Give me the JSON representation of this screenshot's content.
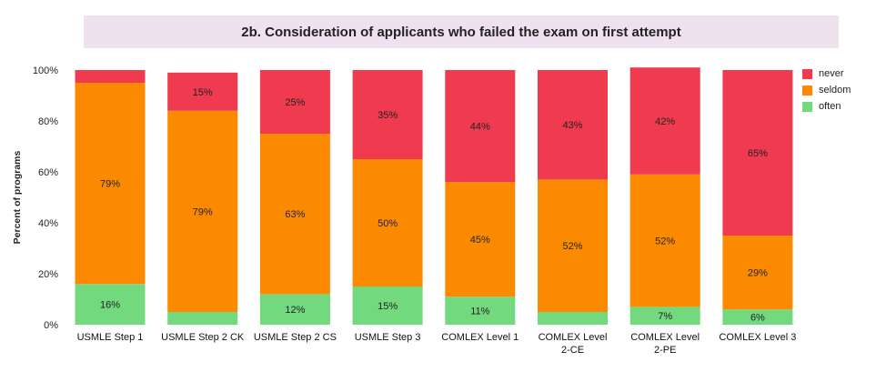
{
  "chart_data": {
    "type": "bar",
    "stacked": true,
    "title": "2b. Consideration of applicants who failed the exam on first attempt",
    "ylabel": "Percent of programs",
    "ylim": [
      0,
      100
    ],
    "yticks": [
      "0%",
      "20%",
      "40%",
      "60%",
      "80%",
      "100%"
    ],
    "categories": [
      [
        "USMLE Step 1"
      ],
      [
        "USMLE Step 2 CK"
      ],
      [
        "USMLE Step 2 CS"
      ],
      [
        "USMLE Step 3"
      ],
      [
        "COMLEX Level 1"
      ],
      [
        "COMLEX Level",
        "2-CE"
      ],
      [
        "COMLEX Level",
        "2-PE"
      ],
      [
        "COMLEX Level 3"
      ]
    ],
    "series": [
      {
        "name": "often",
        "color": "#72d97f",
        "values": [
          16,
          5,
          12,
          15,
          11,
          5,
          7,
          6
        ],
        "labels": [
          "16%",
          "",
          "12%",
          "15%",
          "11%",
          "",
          "7%",
          "6%"
        ]
      },
      {
        "name": "seldom",
        "color": "#fc8a00",
        "values": [
          79,
          79,
          63,
          50,
          45,
          52,
          52,
          29
        ],
        "labels": [
          "79%",
          "79%",
          "63%",
          "50%",
          "45%",
          "52%",
          "52%",
          "29%"
        ]
      },
      {
        "name": "never",
        "color": "#ef3a50",
        "values": [
          5,
          15,
          25,
          35,
          44,
          43,
          42,
          65
        ],
        "labels": [
          "",
          "15%",
          "25%",
          "35%",
          "44%",
          "43%",
          "42%",
          "65%"
        ]
      }
    ],
    "legend_order": [
      "never",
      "seldom",
      "often"
    ],
    "legend_position": "right"
  }
}
